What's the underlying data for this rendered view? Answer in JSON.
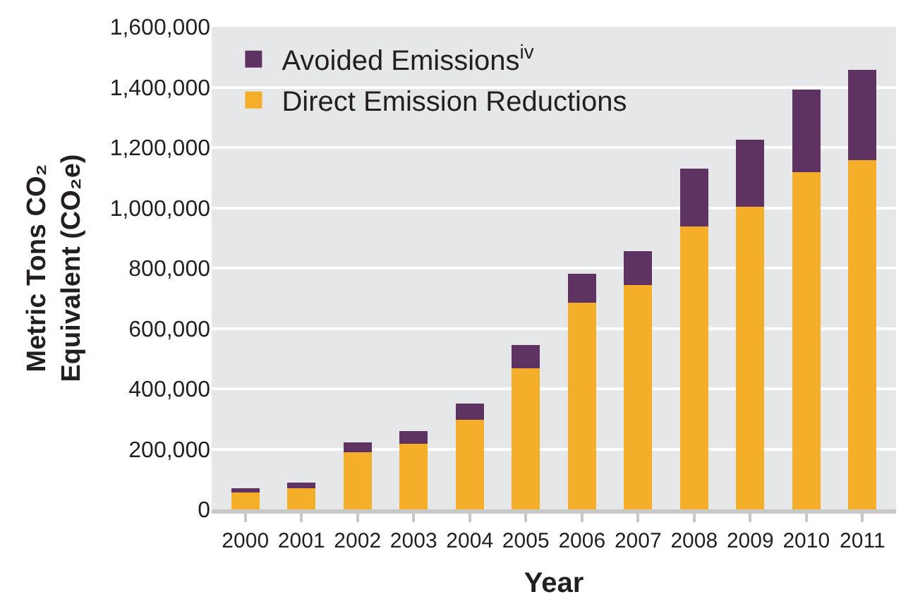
{
  "chart_data": {
    "type": "bar",
    "stacked": true,
    "xlabel": "Year",
    "ylabel": "Metric Tons CO₂\nEquivalent (CO₂e)",
    "categories": [
      "2000",
      "2001",
      "2002",
      "2003",
      "2004",
      "2005",
      "2006",
      "2007",
      "2008",
      "2009",
      "2010",
      "2011"
    ],
    "series": [
      {
        "name": "Direct Emission Reductions",
        "color": "#f5ae2a",
        "values": [
          57000,
          71000,
          189000,
          218000,
          298000,
          468000,
          686000,
          743000,
          937000,
          1003000,
          1117000,
          1159000
        ]
      },
      {
        "name": "Avoided Emissions$^{iv}$",
        "color": "#5f3361",
        "values": [
          14000,
          19000,
          33000,
          42000,
          52000,
          76000,
          95000,
          113000,
          194000,
          223000,
          274000,
          298000
        ]
      }
    ],
    "ylim": [
      0,
      1600000
    ],
    "yticks": [
      0,
      {
        "value": 200000,
        "label": "200,000"
      },
      {
        "value": 400000,
        "label": "400,000"
      },
      {
        "value": 600000,
        "label": "600,000"
      },
      {
        "value": 800000,
        "label": "800,000"
      },
      {
        "value": 1000000,
        "label": "1,000,000"
      },
      {
        "value": 1200000,
        "label": "1,200,000"
      },
      {
        "value": 1400000,
        "label": "1,400,000"
      },
      {
        "value": 1600000,
        "label": "1,600,000"
      }
    ],
    "grid": "y",
    "legend": "top left"
  }
}
